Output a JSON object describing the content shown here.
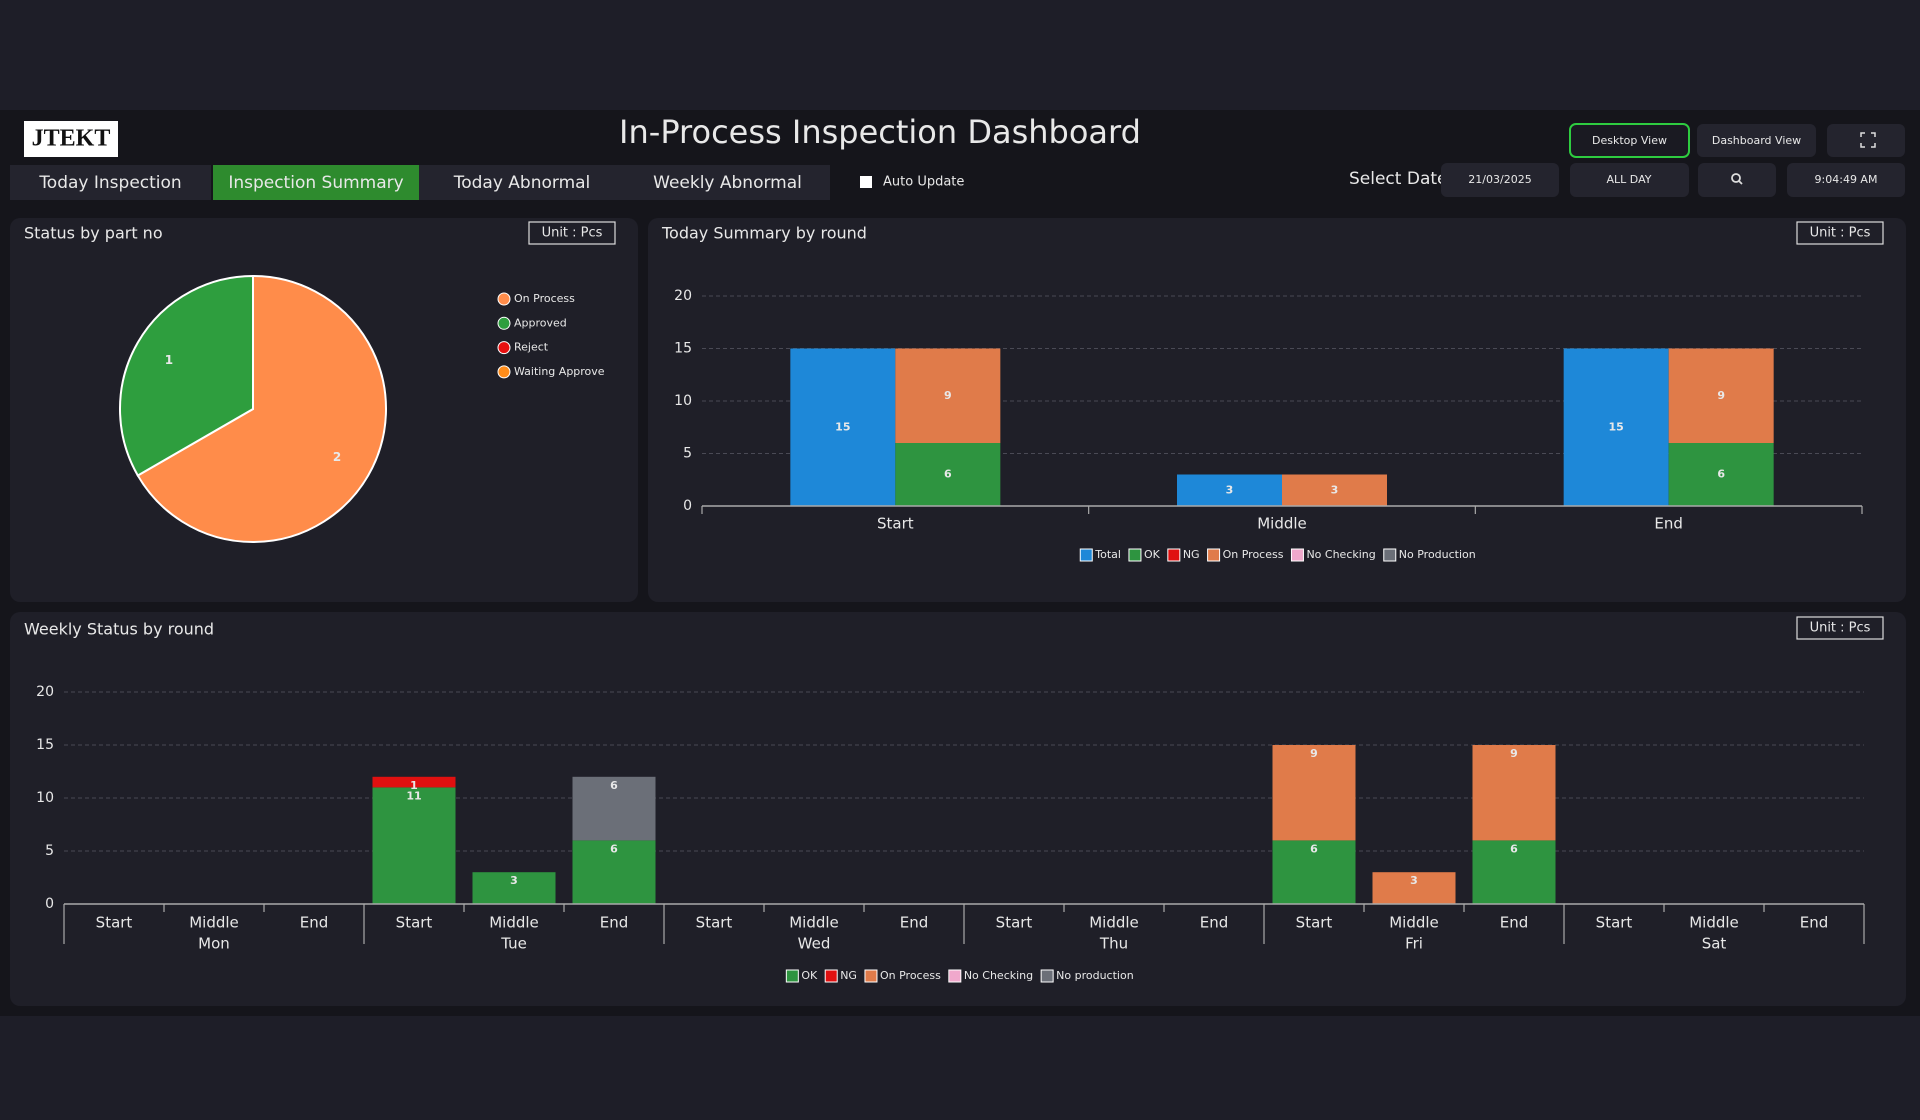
{
  "header": {
    "logo": "JTEKT",
    "title": "In-Process Inspection Dashboard",
    "buttons": [
      "Desktop View",
      "Dashboard View"
    ],
    "active_button": 0
  },
  "tabs": [
    "Today Inspection",
    "Inspection Summary",
    "Today Abnormal",
    "Weekly Abnormal"
  ],
  "active_tab": 1,
  "controls": {
    "auto_update": "Auto Update",
    "select_date": "Select Date",
    "date": "21/03/2025",
    "range": "ALL DAY",
    "time": "9:04:49 AM"
  },
  "chart_data": [
    {
      "type": "pie",
      "title": "Status by part no",
      "unit": "Unit : Pcs",
      "categories": [
        "On Process",
        "Approved",
        "Reject",
        "Waiting Approve"
      ],
      "values": [
        2,
        1,
        0,
        0
      ],
      "colors": [
        "#ff8c4a",
        "#2e9e3e",
        "#e81010",
        "#ff8c1a"
      ]
    },
    {
      "type": "bar",
      "title": "Today Summary by round",
      "unit": "Unit : Pcs",
      "categories": [
        "Start",
        "Middle",
        "End"
      ],
      "series": [
        {
          "name": "Total",
          "color": "#1e88d8",
          "values": [
            15,
            3,
            15
          ]
        },
        {
          "name": "OK",
          "color": "#2e9440",
          "values": [
            6,
            0,
            6
          ]
        },
        {
          "name": "NG",
          "color": "#e01010",
          "values": [
            0,
            0,
            0
          ]
        },
        {
          "name": "On Process",
          "color": "#e07b4a",
          "values": [
            9,
            3,
            9
          ]
        },
        {
          "name": "No Checking",
          "color": "#f0a8cc",
          "values": [
            0,
            0,
            0
          ]
        },
        {
          "name": "No Production",
          "color": "#6b6f78",
          "values": [
            0,
            0,
            0
          ]
        }
      ],
      "ylim": [
        0,
        20
      ],
      "yticks": [
        0,
        5,
        10,
        15,
        20
      ],
      "grid": true
    },
    {
      "type": "bar",
      "title": "Weekly Status by round",
      "unit": "Unit : Pcs",
      "categories": [
        "Start",
        "Middle",
        "End",
        "Start",
        "Middle",
        "End",
        "Start",
        "Middle",
        "End",
        "Start",
        "Middle",
        "End",
        "Start",
        "Middle",
        "End",
        "Start",
        "Middle",
        "End"
      ],
      "groups": [
        "Mon",
        "Tue",
        "Wed",
        "Thu",
        "Fri",
        "Sat"
      ],
      "series": [
        {
          "name": "OK",
          "color": "#2e9440",
          "values": [
            0,
            0,
            0,
            11,
            3,
            6,
            0,
            0,
            0,
            0,
            0,
            0,
            6,
            0,
            6,
            0,
            0,
            0
          ]
        },
        {
          "name": "NG",
          "color": "#e01010",
          "values": [
            0,
            0,
            0,
            1,
            0,
            0,
            0,
            0,
            0,
            0,
            0,
            0,
            0,
            0,
            0,
            0,
            0,
            0
          ]
        },
        {
          "name": "On Process",
          "color": "#e07b4a",
          "values": [
            0,
            0,
            0,
            0,
            0,
            0,
            0,
            0,
            0,
            0,
            0,
            0,
            9,
            3,
            9,
            0,
            0,
            0
          ]
        },
        {
          "name": "No Checking",
          "color": "#f0a8cc",
          "values": [
            0,
            0,
            0,
            0,
            0,
            0,
            0,
            0,
            0,
            0,
            0,
            0,
            0,
            0,
            0,
            0,
            0,
            0
          ]
        },
        {
          "name": "No production",
          "color": "#6b6f78",
          "values": [
            0,
            0,
            0,
            0,
            0,
            6,
            0,
            0,
            0,
            0,
            0,
            0,
            0,
            0,
            0,
            0,
            0,
            0
          ]
        }
      ],
      "ylim": [
        0,
        20
      ],
      "yticks": [
        0,
        5,
        10,
        15,
        20
      ],
      "grid": true
    }
  ]
}
